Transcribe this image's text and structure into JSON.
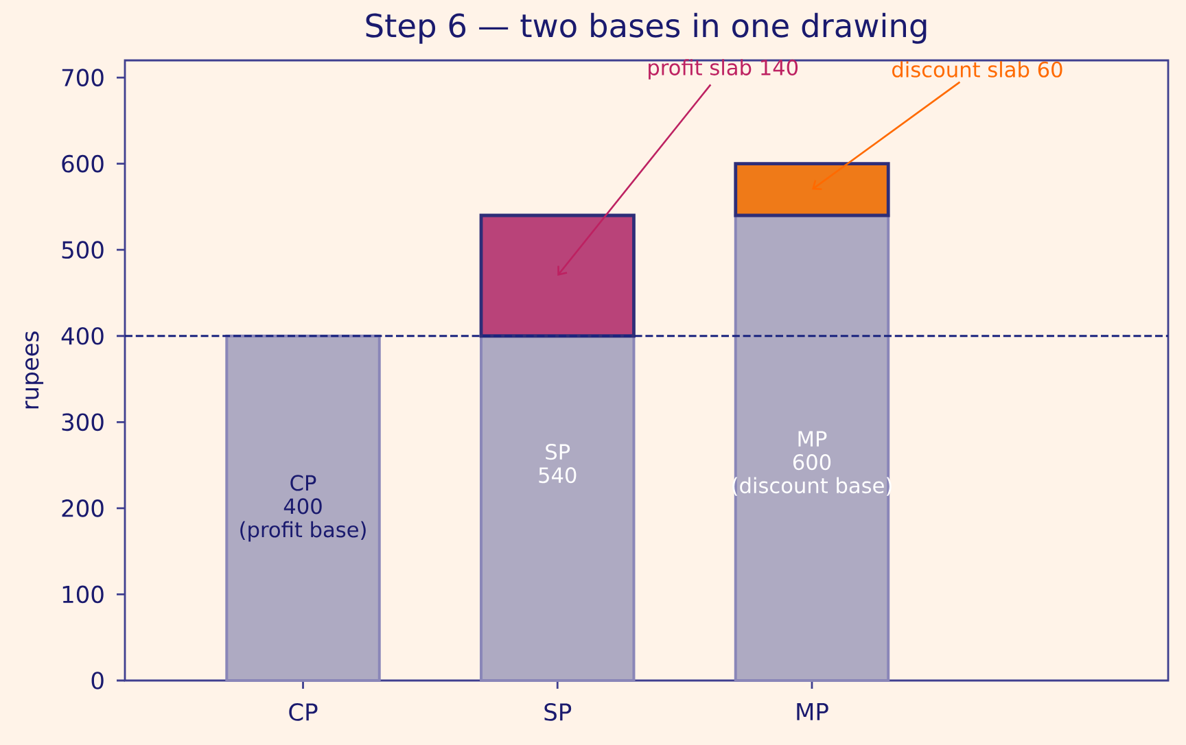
{
  "chart_data": {
    "type": "bar",
    "title": "Step 6 — two bases in one drawing",
    "ylabel": "rupees",
    "categories": [
      "CP",
      "SP",
      "MP"
    ],
    "stacked": true,
    "series": [
      {
        "color": "#aeaac2",
        "values": [
          400,
          400,
          540
        ]
      },
      {
        "values": [
          null,
          140,
          60
        ],
        "colors": [
          null,
          "#b94379",
          "#ef7a18"
        ]
      }
    ],
    "totals": [
      "CP\n400\n(profit base)",
      "SP\n540",
      "MP\n600\n(discount base)"
    ],
    "ylim": [
      0,
      720
    ],
    "yticks": [
      0,
      100,
      200,
      300,
      400,
      500,
      600,
      700
    ],
    "ref_lines": [
      {
        "axis": "y",
        "value": 400,
        "color": "#1a237e",
        "line_style": "dashed"
      }
    ],
    "annotations": [
      "profit slab 140",
      "discount slab 60"
    ]
  }
}
